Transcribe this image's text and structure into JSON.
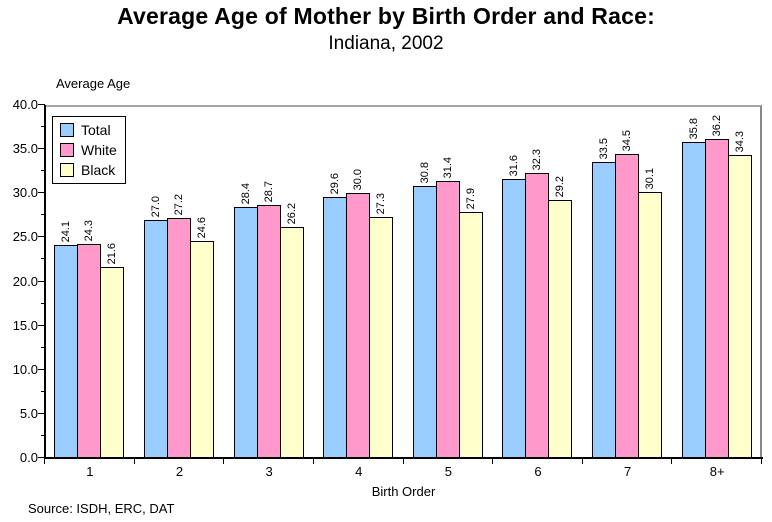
{
  "header": {
    "title": "Average Age of Mother by Birth Order and Race:",
    "subtitle": "Indiana, 2002"
  },
  "footer": {
    "source": "Source: ISDH, ERC, DAT"
  },
  "chart_data": {
    "type": "bar",
    "title": "Average Age of Mother by Birth Order and Race: Indiana, 2002",
    "categories": [
      "1",
      "2",
      "3",
      "4",
      "5",
      "6",
      "7",
      "8+"
    ],
    "series": [
      {
        "name": "Total",
        "color": "#99CCFF",
        "values": [
          24.1,
          27.0,
          28.4,
          29.6,
          30.8,
          31.6,
          33.5,
          35.8
        ]
      },
      {
        "name": "White",
        "color": "#FF99CC",
        "values": [
          24.3,
          27.2,
          28.7,
          30.0,
          31.4,
          32.3,
          34.5,
          36.2
        ]
      },
      {
        "name": "Black",
        "color": "#FFFFCC",
        "values": [
          21.6,
          24.6,
          26.2,
          27.3,
          27.9,
          29.2,
          30.1,
          34.3
        ]
      }
    ],
    "xlabel": "Birth Order",
    "ylabel": "Average Age",
    "ylim": [
      0,
      40
    ],
    "ytick_step": 5,
    "ytick_minor_step": 2.5,
    "ytick_decimals": 1,
    "value_label_decimals": 1,
    "value_labels_rotated": true,
    "legend_position": "top-left",
    "grid": false,
    "bar_fill_border": "#000000",
    "axis_color": "#000000",
    "plot_border_color": "#a6a6a6"
  }
}
